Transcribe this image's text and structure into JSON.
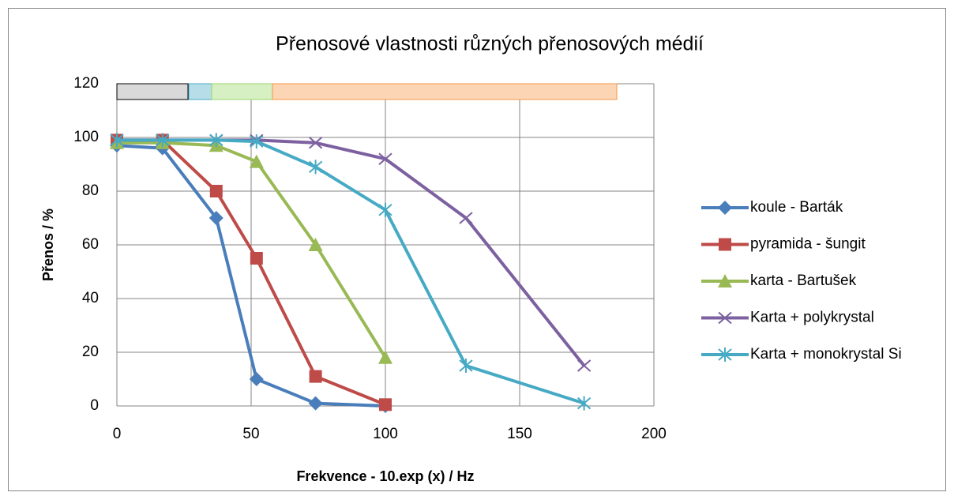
{
  "chart_data": {
    "type": "line",
    "title": "Přenosové vlastnosti různých přenosových médií",
    "x_label": "Frekvence - 10.exp (x) / Hz",
    "y_label": "Přenos / %",
    "xlim": [
      0,
      200
    ],
    "xticks": [
      0,
      50,
      100,
      150,
      200
    ],
    "ylim": [
      0,
      120
    ],
    "yticks": [
      0,
      20,
      40,
      60,
      80,
      100,
      120
    ],
    "grid": true,
    "legend": "right",
    "series": [
      {
        "name": "koule - Barták",
        "color": "#4a7ebb",
        "marker": "diamond",
        "x": [
          0,
          17,
          37,
          52,
          74,
          100
        ],
        "values": [
          97,
          96,
          70,
          10,
          1,
          0
        ]
      },
      {
        "name": "pyramida - šungit",
        "color": "#be4b48",
        "marker": "square",
        "x": [
          0,
          17,
          37,
          52,
          74,
          100
        ],
        "values": [
          99,
          99,
          80,
          55,
          11,
          0.5
        ]
      },
      {
        "name": "karta - Bartušek",
        "color": "#98b954",
        "marker": "triangle",
        "x": [
          0,
          17,
          37,
          52,
          74,
          100
        ],
        "values": [
          98,
          98,
          97,
          91,
          60,
          18
        ]
      },
      {
        "name": "Karta + polykrystal",
        "color": "#7d60a0",
        "marker": "x",
        "x": [
          0,
          17,
          37,
          52,
          74,
          100,
          130,
          174
        ],
        "values": [
          99,
          99,
          99,
          99,
          98,
          92,
          70,
          15
        ]
      },
      {
        "name": "Karta + monokrystal Si",
        "color": "#46aac5",
        "marker": "star",
        "x": [
          0,
          17,
          37,
          52,
          74,
          100,
          130,
          174
        ],
        "values": [
          99,
          99,
          99,
          98.5,
          89,
          73,
          15,
          1
        ]
      }
    ]
  }
}
